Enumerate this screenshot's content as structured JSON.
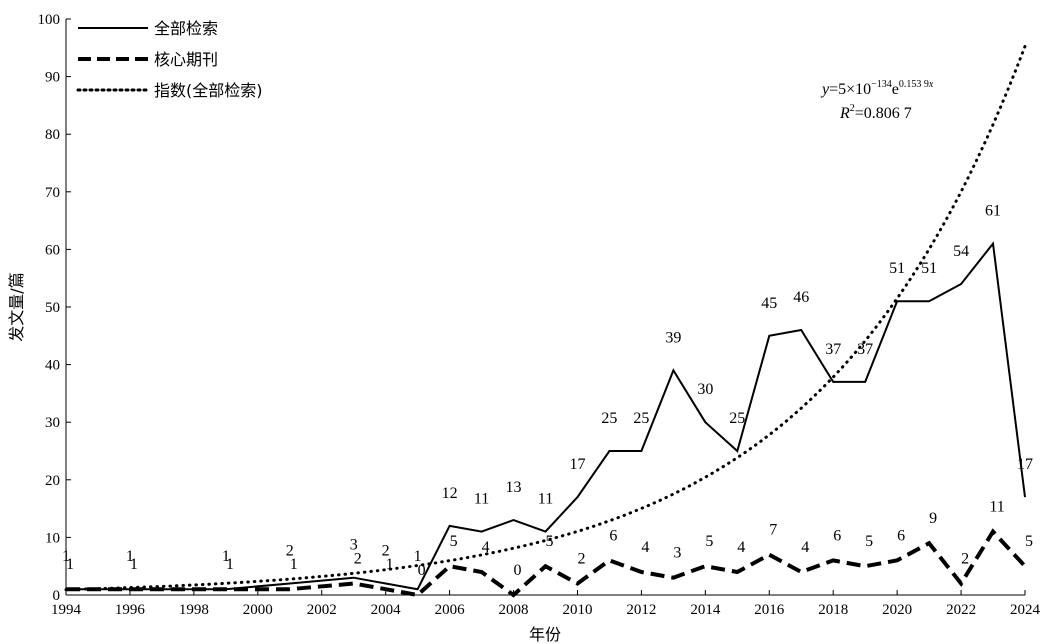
{
  "chart_data": {
    "type": "line",
    "xlabel": "年份",
    "ylabel": "发文量/篇",
    "xlim": [
      1994,
      2024
    ],
    "ylim": [
      0,
      100
    ],
    "x_ticks": [
      1994,
      1996,
      1998,
      2000,
      2002,
      2004,
      2006,
      2008,
      2010,
      2012,
      2014,
      2016,
      2018,
      2020,
      2022,
      2024
    ],
    "y_ticks": [
      0,
      10,
      20,
      30,
      40,
      50,
      60,
      70,
      80,
      90,
      100
    ],
    "x": [
      1994,
      1996,
      1999,
      2001,
      2003,
      2004,
      2005,
      2006,
      2007,
      2008,
      2009,
      2010,
      2011,
      2012,
      2013,
      2014,
      2015,
      2016,
      2017,
      2018,
      2019,
      2020,
      2021,
      2022,
      2023,
      2024
    ],
    "series": [
      {
        "name": "全部检索",
        "style": "solid",
        "values": [
          1,
          1,
          1,
          2,
          3,
          2,
          1,
          12,
          11,
          13,
          11,
          17,
          25,
          25,
          39,
          30,
          25,
          45,
          46,
          37,
          37,
          51,
          51,
          54,
          61,
          17
        ]
      },
      {
        "name": "核心期刊",
        "style": "dashed",
        "values": [
          1,
          1,
          1,
          1,
          2,
          1,
          0,
          5,
          4,
          0,
          5,
          2,
          6,
          4,
          3,
          5,
          4,
          7,
          4,
          6,
          5,
          6,
          9,
          2,
          11,
          5
        ]
      },
      {
        "name": "指数(全部检索)",
        "style": "dotted",
        "trendline": "exponential"
      }
    ],
    "annotation": {
      "equation_parts": [
        "y",
        "=5×10",
        "−134",
        "e",
        "0.153 9",
        "x"
      ],
      "r2_parts": [
        "R",
        "2",
        "=0.806 7"
      ]
    },
    "legend_position": "top-left",
    "grid": false
  },
  "colors": {
    "line": "#000000",
    "background": "#ffffff"
  }
}
